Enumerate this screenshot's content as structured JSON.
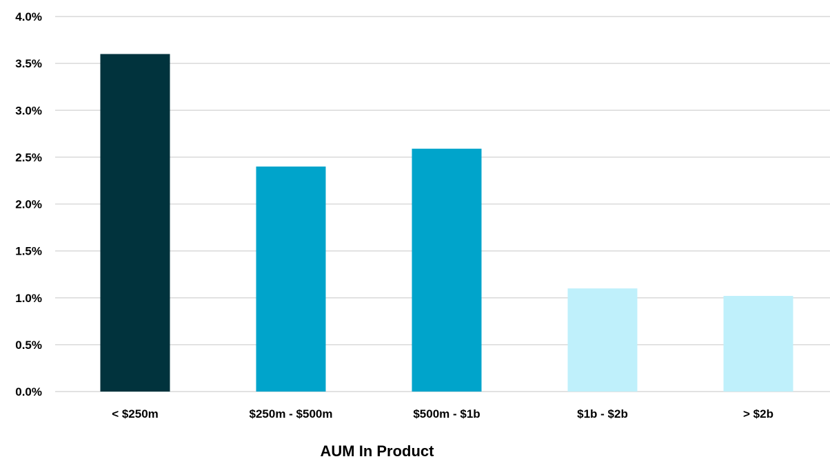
{
  "chart_data": {
    "type": "bar",
    "title": "",
    "xlabel": "AUM In Product",
    "ylabel": "",
    "categories": [
      "< $250m",
      "$250m - $500m",
      "$500m - $1b",
      "$1b - $2b",
      "> $2b"
    ],
    "values": [
      3.6,
      2.4,
      2.59,
      1.1,
      1.02
    ],
    "bar_colors": [
      "#01333d",
      "#00a4cb",
      "#00a4cb",
      "#bff0fb",
      "#bff0fb"
    ],
    "ylim": [
      0,
      4.0
    ],
    "yticks": [
      0,
      0.5,
      1.0,
      1.5,
      2.0,
      2.5,
      3.0,
      3.5,
      4.0
    ],
    "ytick_labels": [
      "0.0%",
      "0.5%",
      "1.0%",
      "1.5%",
      "2.0%",
      "2.5%",
      "3.0%",
      "3.5%",
      "4.0%"
    ],
    "grid": true,
    "legend": "none"
  }
}
